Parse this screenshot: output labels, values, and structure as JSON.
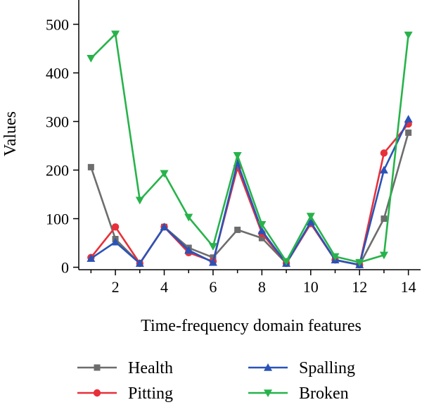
{
  "chart_data": {
    "type": "line",
    "title": "",
    "xlabel": "Time-frequency domain features",
    "ylabel": "Values",
    "x": [
      1,
      2,
      3,
      4,
      5,
      6,
      7,
      8,
      9,
      10,
      11,
      12,
      13,
      14
    ],
    "x_ticks": [
      2,
      4,
      6,
      8,
      10,
      12,
      14
    ],
    "y_ticks": [
      0,
      100,
      200,
      300,
      400,
      500
    ],
    "xlim": [
      0.5,
      14.5
    ],
    "ylim": [
      -5,
      550
    ],
    "grid": false,
    "legend_position": "bottom",
    "series": [
      {
        "name": "Health",
        "color": "#6d6d6d",
        "marker": "square",
        "values": [
          206,
          58,
          8,
          83,
          40,
          20,
          77,
          60,
          8,
          90,
          15,
          5,
          100,
          277
        ]
      },
      {
        "name": "Pitting",
        "color": "#e8303a",
        "marker": "circle",
        "values": [
          20,
          83,
          8,
          83,
          30,
          12,
          205,
          70,
          8,
          90,
          15,
          5,
          235,
          295
        ]
      },
      {
        "name": "Spalling",
        "color": "#2a53b8",
        "marker": "triangle-up",
        "values": [
          18,
          52,
          8,
          83,
          35,
          10,
          215,
          75,
          8,
          93,
          15,
          5,
          200,
          305
        ]
      },
      {
        "name": "Broken",
        "color": "#27b34a",
        "marker": "triangle-down",
        "values": [
          430,
          480,
          138,
          193,
          103,
          43,
          230,
          88,
          12,
          105,
          22,
          10,
          25,
          478
        ]
      }
    ]
  }
}
